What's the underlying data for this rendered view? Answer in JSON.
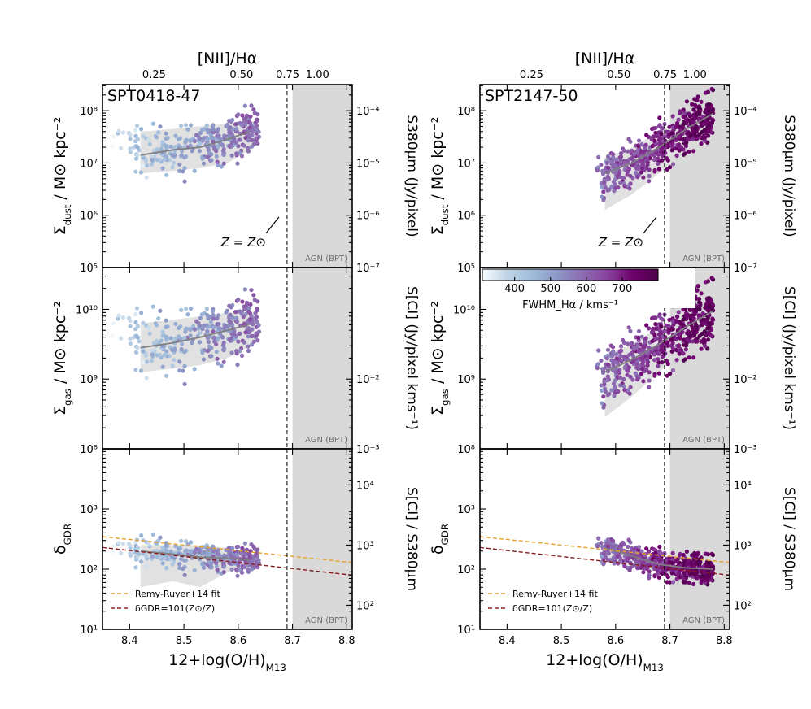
{
  "chart_data": {
    "type": "scatter",
    "x_axis": {
      "label_main": "12+log(O/H)",
      "label_sub": "M13",
      "range": [
        8.35,
        8.81
      ],
      "ticks": [
        "8.4",
        "8.5",
        "8.6",
        "8.7",
        "8.8"
      ],
      "tick_values": [
        8.4,
        8.5,
        8.6,
        8.7,
        8.8
      ]
    },
    "top_axis": {
      "label": "[NII]/Hα",
      "ticks": [
        "0.25",
        "0.50",
        "0.75",
        "1.00"
      ],
      "tick_x_values": [
        8.445,
        8.606,
        8.691,
        8.746
      ]
    },
    "solar_metallicity": 8.69,
    "agn_region_start": 8.7,
    "agn_label": "AGN (BPT)",
    "solar_annotation": "Z = Z⊙",
    "colorbar": {
      "label": "FWHM_Hα / kms⁻¹",
      "range": [
        310,
        800
      ],
      "ticks": [
        "400",
        "500",
        "600",
        "700"
      ],
      "tick_values": [
        400,
        500,
        600,
        700
      ],
      "colors": [
        "#f7fcfd",
        "#bfd3e6",
        "#9ebcda",
        "#8c96c6",
        "#8c6bb1",
        "#88419d",
        "#6e016b",
        "#4d004b"
      ]
    },
    "rows": [
      {
        "key": "dust",
        "ylabel_main": "Σ",
        "ylabel_sub": "dust",
        "ylabel_rest": " / M⊙ kpc⁻²",
        "y_log_range": [
          5,
          8.5
        ],
        "y_ticks": [
          "10⁵",
          "10⁶",
          "10⁷",
          "10⁸"
        ],
        "y_tick_logs": [
          5,
          6,
          7,
          8
        ],
        "right_label": "S380μm (Jy/pixel)",
        "right_ticks": [
          "10⁻⁷",
          "10⁻⁶",
          "10⁻⁵",
          "10⁻⁴"
        ],
        "right_offset_log": 12
      },
      {
        "key": "gas",
        "ylabel_main": "Σ",
        "ylabel_sub": "gas",
        "ylabel_rest": " / M⊙ kpc⁻²",
        "y_log_range": [
          8,
          10.6
        ],
        "y_ticks": [
          "10⁸",
          "10⁹",
          "10¹⁰"
        ],
        "y_tick_logs": [
          8,
          9,
          10
        ],
        "right_label": "S[CI] (Jy/pixel kms⁻¹)",
        "right_ticks": [
          "10⁻³",
          "10⁻²"
        ],
        "right_offset_log": 12
      },
      {
        "key": "gdr",
        "ylabel_main": "δ",
        "ylabel_sub": "GDR",
        "ylabel_rest": "",
        "y_log_range": [
          1,
          4
        ],
        "y_ticks": [
          "10¹",
          "10²",
          "10³"
        ],
        "y_tick_logs": [
          1,
          2,
          3
        ],
        "right_label": "S[CI] / S380μm",
        "right_ticks": [
          "10²",
          "10³",
          "10⁴"
        ],
        "right_offset_log": -0.6
      }
    ],
    "reference_lines": [
      {
        "name": "Remy-Ruyer+14 fit",
        "color": "#e8a02c",
        "points": [
          [
            8.35,
            2.54
          ],
          [
            8.81,
            2.11
          ]
        ]
      },
      {
        "name": "δGDR=101(Z⊙/Z)",
        "color": "#8b1a1a",
        "points": [
          [
            8.35,
            2.36
          ],
          [
            8.81,
            1.9
          ]
        ]
      }
    ],
    "panels": [
      {
        "name": "SPT0418-47",
        "x_range": [
          8.35,
          8.64
        ],
        "color_mean": 480,
        "trend": {
          "x": [
            8.42,
            8.48,
            8.53,
            8.58,
            8.62
          ],
          "dust": [
            7.15,
            7.25,
            7.3,
            7.45,
            7.6
          ],
          "gas": [
            9.45,
            9.52,
            9.6,
            9.7,
            9.78
          ],
          "gdr": [
            2.3,
            2.25,
            2.2,
            2.18,
            2.15
          ]
        },
        "band_x": [
          8.42,
          8.48,
          8.53,
          8.58,
          8.63
        ],
        "dust_band": [
          [
            6.8,
            7.6
          ],
          [
            6.85,
            7.65
          ],
          [
            6.9,
            7.7
          ],
          [
            7.0,
            7.75
          ],
          [
            7.3,
            7.8
          ]
        ],
        "gas_band": [
          [
            9.1,
            9.8
          ],
          [
            9.15,
            9.85
          ],
          [
            9.2,
            9.9
          ],
          [
            9.3,
            9.95
          ],
          [
            9.5,
            9.95
          ]
        ],
        "gdr_band": [
          [
            1.7,
            2.4
          ],
          [
            1.8,
            2.4
          ],
          [
            1.7,
            2.4
          ],
          [
            1.95,
            2.35
          ],
          [
            2.05,
            2.25
          ]
        ]
      },
      {
        "name": "SPT2147-50",
        "x_range": [
          8.35,
          8.78
        ],
        "color_mean": 520,
        "trend": {
          "x": [
            8.58,
            8.63,
            8.68,
            8.73,
            8.78
          ],
          "dust": [
            6.8,
            7.0,
            7.3,
            7.65,
            7.95
          ],
          "gas": [
            9.1,
            9.28,
            9.5,
            9.75,
            9.98
          ],
          "gdr": [
            2.35,
            2.22,
            2.08,
            2.02,
            2.0
          ]
        },
        "band_x": [
          8.58,
          8.63,
          8.68,
          8.73,
          8.78
        ],
        "dust_band": [
          [
            6.1,
            7.1
          ],
          [
            6.4,
            7.3
          ],
          [
            6.8,
            7.6
          ],
          [
            7.2,
            7.9
          ],
          [
            7.6,
            8.15
          ]
        ],
        "gas_band": [
          [
            8.45,
            9.35
          ],
          [
            8.75,
            9.5
          ],
          [
            9.1,
            9.75
          ],
          [
            9.45,
            9.95
          ],
          [
            9.8,
            10.15
          ]
        ],
        "gdr_band": [
          [
            2.15,
            2.45
          ],
          [
            2.05,
            2.3
          ],
          [
            1.95,
            2.15
          ],
          [
            1.9,
            2.1
          ],
          [
            1.9,
            2.05
          ]
        ]
      }
    ]
  }
}
